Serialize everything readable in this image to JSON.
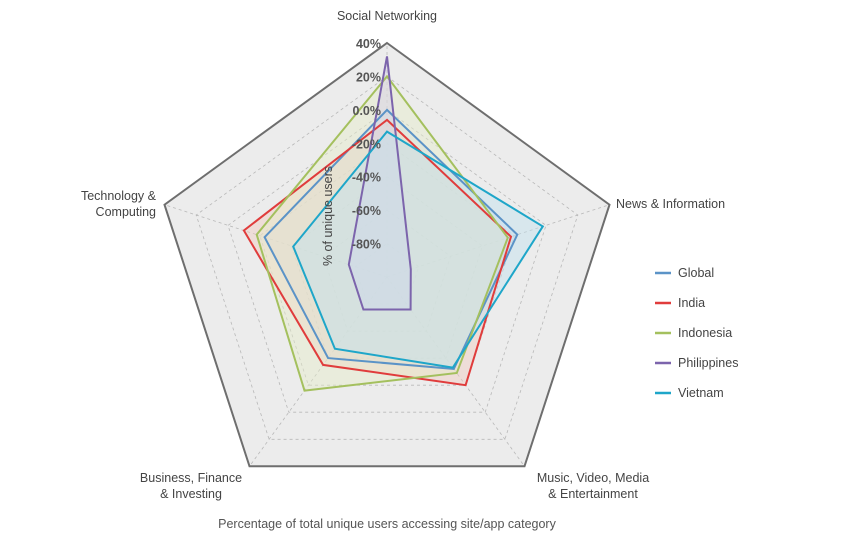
{
  "chart_data": {
    "type": "radar",
    "caption": "Percentage of total unique users accessing site/app category",
    "ylabel": "% of unique users",
    "ylim": [
      -100,
      40
    ],
    "ticks": [
      "40%",
      "20%",
      "0.0%",
      "-20%",
      "-40%",
      "-60%",
      "-80%"
    ],
    "tick_values": [
      40,
      20,
      0,
      -20,
      -40,
      -60,
      -80
    ],
    "grid": true,
    "legend_position": "right",
    "categories": [
      "Social Networking",
      "News & Information",
      "Music, Video, Media & Entertainment",
      "Business, Finance & Investing",
      "Technology & Computing"
    ],
    "category_lines": [
      [
        "Social Networking"
      ],
      [
        "News & Information"
      ],
      [
        "Music, Video, Media",
        "& Entertainment"
      ],
      [
        "Business, Finance",
        "& Investing"
      ],
      [
        "Technology &",
        "Computing"
      ]
    ],
    "series": [
      {
        "name": "Global",
        "color": "#5b93c7",
        "fill": "#c6d8ea",
        "values": [
          0,
          -18,
          -32,
          -40,
          -23
        ]
      },
      {
        "name": "India",
        "color": "#e03c3c",
        "fill": "#f2cdc0",
        "values": [
          -6,
          -22,
          -20,
          -35,
          -10
        ]
      },
      {
        "name": "Indonesia",
        "color": "#a4c05e",
        "fill": "#e6edc9",
        "values": [
          20,
          -24,
          -29,
          -16,
          -18
        ]
      },
      {
        "name": "Philippines",
        "color": "#7c64ac",
        "fill": "#d5cfe6",
        "values": [
          32,
          -85,
          -76,
          -76,
          -76
        ]
      },
      {
        "name": "Vietnam",
        "color": "#1ea6c9",
        "fill": "#c2e3ef",
        "values": [
          -13,
          -2,
          -33,
          -47,
          -41
        ]
      }
    ]
  }
}
